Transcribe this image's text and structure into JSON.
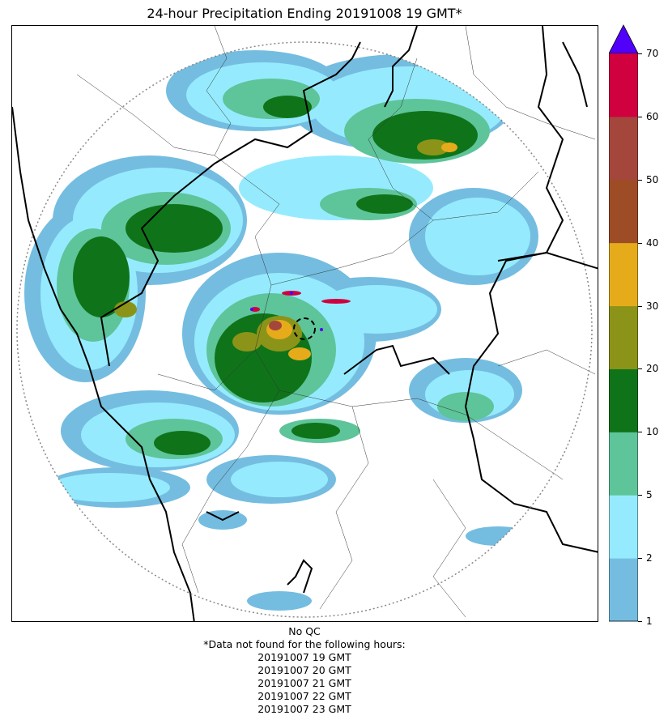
{
  "title": "24-hour Precipitation Ending 20191008 19 GMT*",
  "colorbar": {
    "bins": [
      {
        "from": 1,
        "to": 2,
        "color": "#74bde0"
      },
      {
        "from": 2,
        "to": 5,
        "color": "#95ebfd"
      },
      {
        "from": 5,
        "to": 10,
        "color": "#5ec49a"
      },
      {
        "from": 10,
        "to": 20,
        "color": "#0f7419"
      },
      {
        "from": 20,
        "to": 30,
        "color": "#8b9418"
      },
      {
        "from": 30,
        "to": 40,
        "color": "#e6ab1a"
      },
      {
        "from": 40,
        "to": 50,
        "color": "#9e4c26"
      },
      {
        "from": 50,
        "to": 60,
        "color": "#a5463d"
      },
      {
        "from": 60,
        "to": 70,
        "color": "#d1003f"
      }
    ],
    "over_color": "#5100fa",
    "tick_labels": [
      "1",
      "2",
      "5",
      "10",
      "20",
      "30",
      "40",
      "50",
      "60",
      "70"
    ]
  },
  "footer": {
    "lines": [
      "No QC",
      "*Data not found for the following hours:",
      "20191007 19 GMT",
      "20191007 20 GMT",
      "20191007 21 GMT",
      "20191007 22 GMT",
      "20191007 23 GMT"
    ]
  }
}
